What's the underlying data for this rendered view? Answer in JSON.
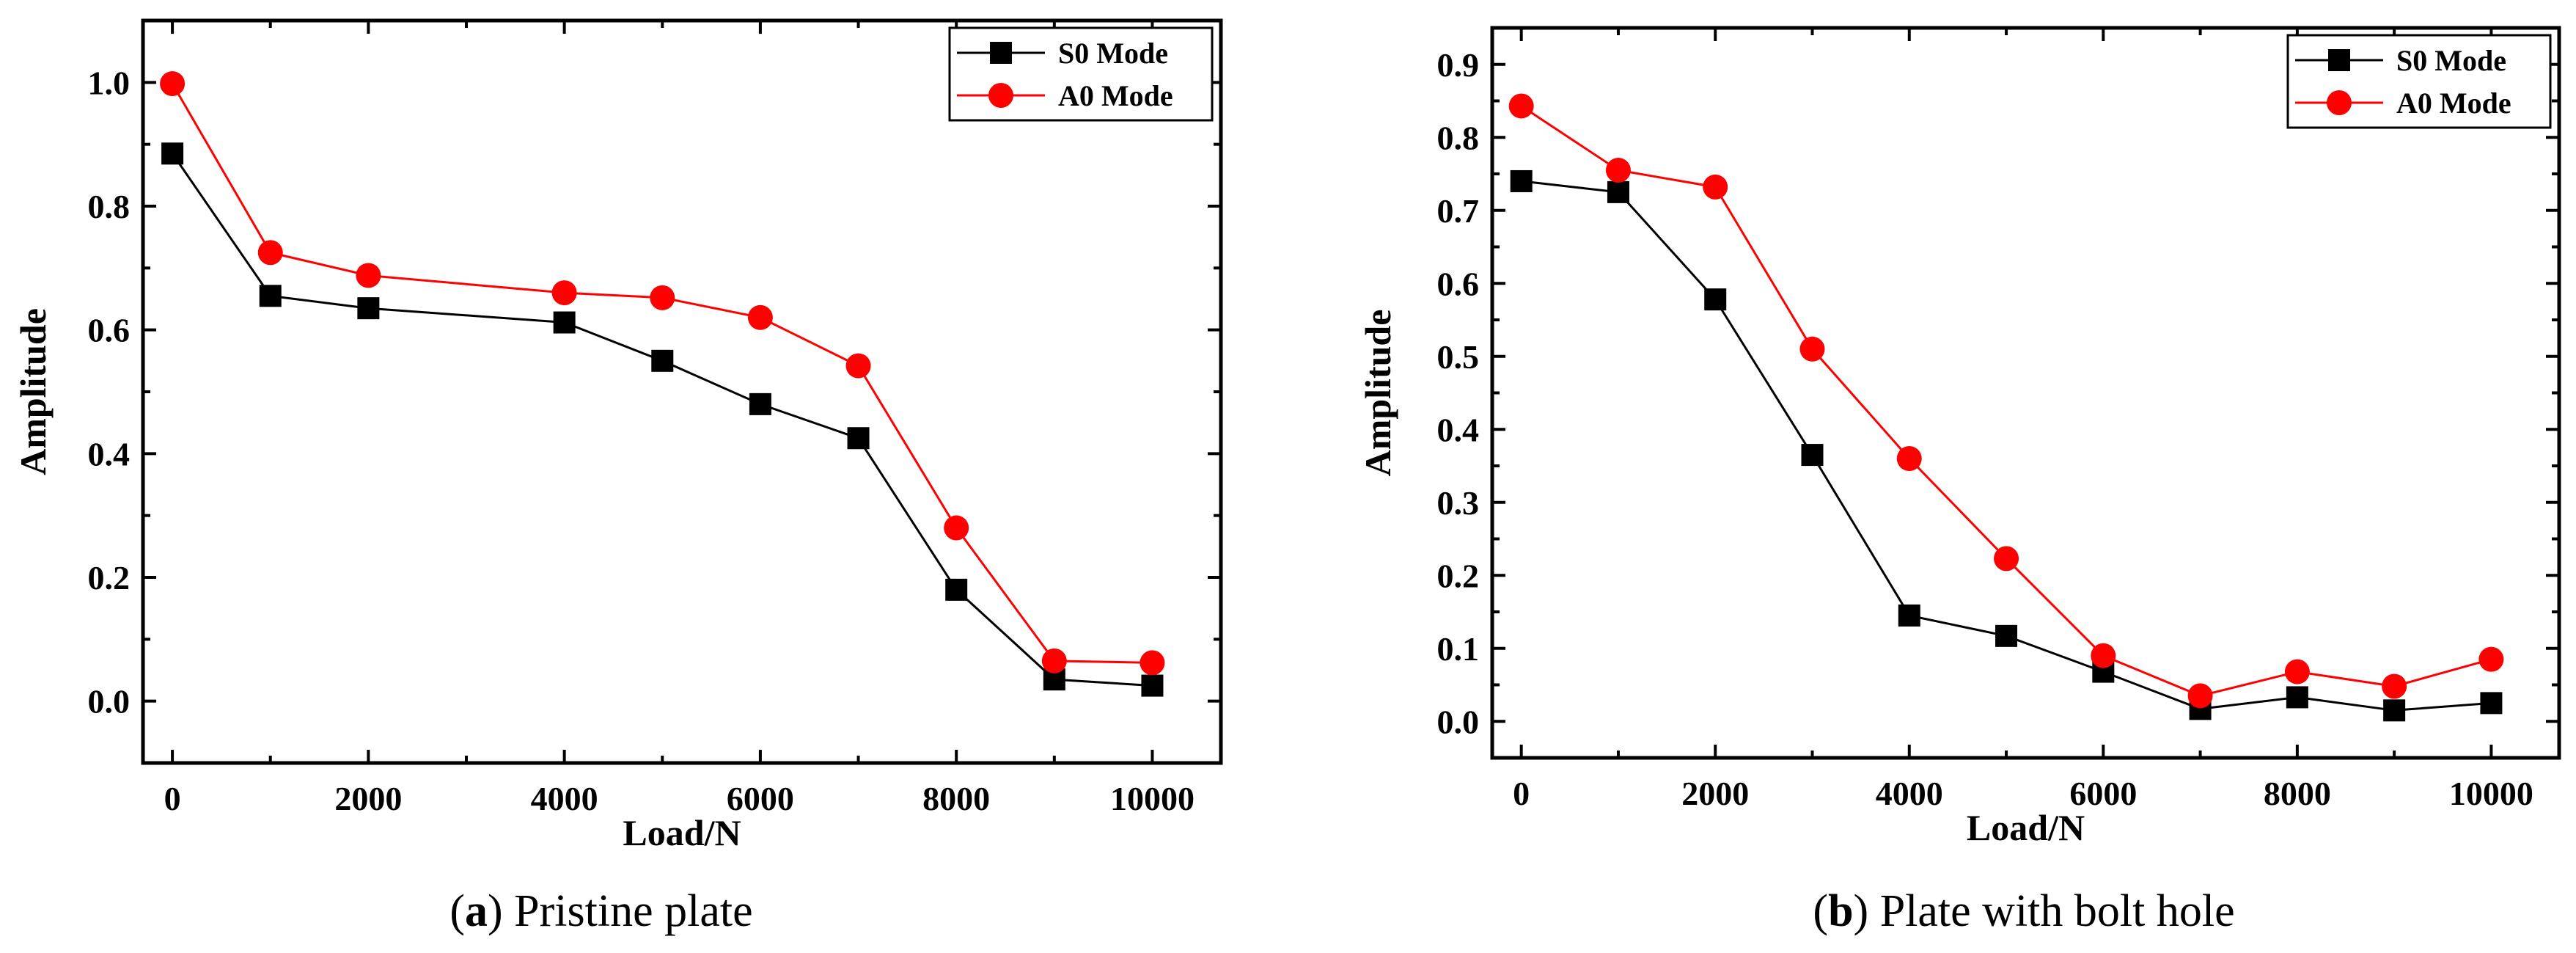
{
  "chart_data": [
    {
      "type": "line",
      "id": "a",
      "caption_letter": "a",
      "caption_text": "Pristine plate",
      "xlabel": "Load/N",
      "ylabel": "Amplitude",
      "xlim": [
        -300,
        10700
      ],
      "ylim": [
        -0.1,
        1.1
      ],
      "xticks": [
        0,
        2000,
        4000,
        6000,
        8000,
        10000
      ],
      "xminor": [
        1000,
        3000,
        5000,
        7000,
        9000
      ],
      "yticks": [
        0.0,
        0.2,
        0.4,
        0.6,
        0.8,
        1.0
      ],
      "yminor": [
        -0.1,
        0.1,
        0.3,
        0.5,
        0.7,
        0.9,
        1.1
      ],
      "ytick_decimals": 1,
      "x": [
        0,
        1000,
        2000,
        4000,
        5000,
        6000,
        7000,
        8000,
        9000,
        10000
      ],
      "series": [
        {
          "name": "S0 Mode",
          "marker": "square",
          "color": "#000000",
          "values": [
            0.885,
            0.655,
            0.635,
            0.612,
            0.55,
            0.48,
            0.425,
            0.18,
            0.035,
            0.025
          ]
        },
        {
          "name": "A0 Mode",
          "marker": "circle",
          "color": "#ff0000",
          "values": [
            0.998,
            0.725,
            0.688,
            0.66,
            0.652,
            0.62,
            0.542,
            0.28,
            0.065,
            0.062
          ]
        }
      ],
      "legend_position": "top-right",
      "grid": false
    },
    {
      "type": "line",
      "id": "b",
      "caption_letter": "b",
      "caption_text": "Plate with bolt hole",
      "xlabel": "Load/N",
      "ylabel": "Amplitude",
      "xlim": [
        -300,
        10700
      ],
      "ylim": [
        -0.05,
        0.95
      ],
      "xticks": [
        0,
        2000,
        4000,
        6000,
        8000,
        10000
      ],
      "xminor": [
        1000,
        3000,
        5000,
        7000,
        9000
      ],
      "yticks": [
        0.0,
        0.1,
        0.2,
        0.3,
        0.4,
        0.5,
        0.6,
        0.7,
        0.8,
        0.9
      ],
      "yminor": [
        -0.05,
        0.05,
        0.15,
        0.25,
        0.35,
        0.45,
        0.55,
        0.65,
        0.75,
        0.85,
        0.95
      ],
      "ytick_decimals": 1,
      "x": [
        0,
        1000,
        2000,
        3000,
        4000,
        5000,
        6000,
        7000,
        8000,
        9000,
        10000
      ],
      "series": [
        {
          "name": "S0 Mode",
          "marker": "square",
          "color": "#000000",
          "values": [
            0.74,
            0.725,
            0.578,
            0.365,
            0.145,
            0.117,
            0.068,
            0.017,
            0.033,
            0.015,
            0.025
          ]
        },
        {
          "name": "A0 Mode",
          "marker": "circle",
          "color": "#ff0000",
          "values": [
            0.843,
            0.755,
            0.732,
            0.51,
            0.36,
            0.223,
            0.09,
            0.035,
            0.068,
            0.048,
            0.085
          ]
        }
      ],
      "legend_position": "top-right",
      "grid": false
    }
  ]
}
